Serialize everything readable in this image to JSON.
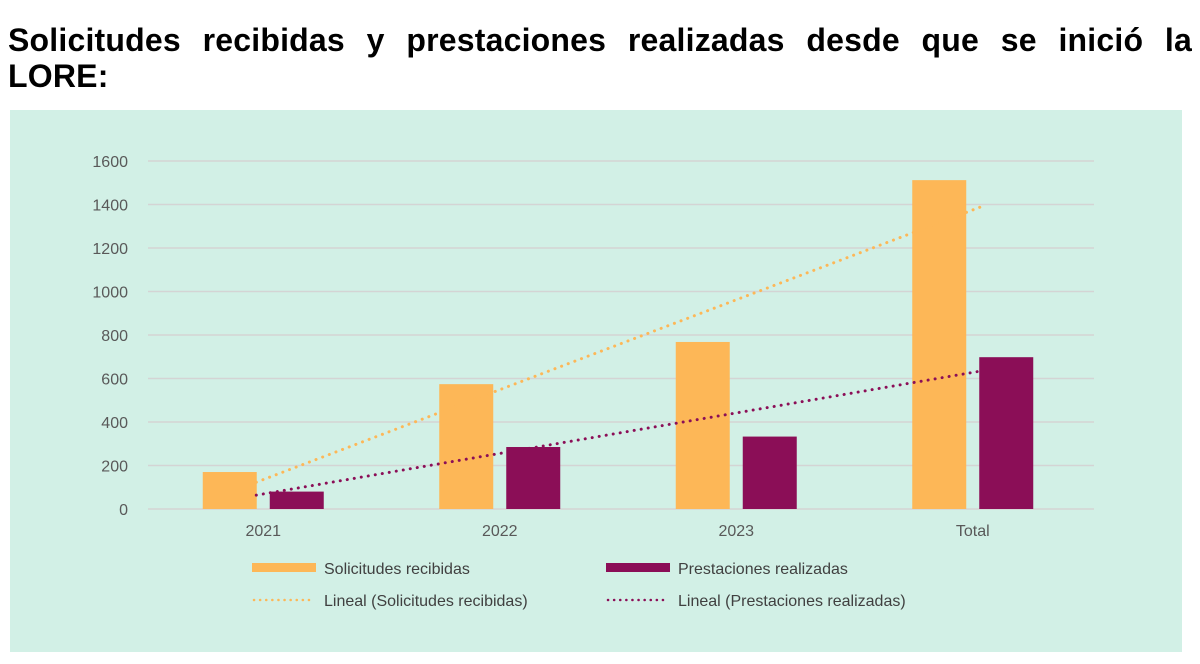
{
  "title": "Solicitudes recibidas y prestaciones realizadas desde que se inició la LORE:",
  "colors": {
    "background": "#d2f0e6",
    "solicitudes": "#fdb757",
    "prestaciones": "#8b0e57",
    "grid": "#d4d4d4",
    "tick_text": "#595959"
  },
  "chart_data": {
    "type": "bar",
    "title": "",
    "xlabel": "",
    "ylabel": "",
    "categories": [
      "2021",
      "2022",
      "2023",
      "Total"
    ],
    "series": [
      {
        "name": "Solicitudes recibidas",
        "values": [
          170,
          574,
          768,
          1512
        ]
      },
      {
        "name": "Prestaciones realizadas",
        "values": [
          80,
          285,
          333,
          698
        ]
      }
    ],
    "trendlines": [
      {
        "name": "Lineal (Solicitudes recibidas)",
        "type": "linear",
        "of_series": "Solicitudes recibidas",
        "style": "dotted"
      },
      {
        "name": "Lineal (Prestaciones realizadas)",
        "type": "linear",
        "of_series": "Prestaciones realizadas",
        "style": "dotted"
      }
    ],
    "ylim": [
      0,
      1600
    ],
    "yticks": [
      0,
      200,
      400,
      600,
      800,
      1000,
      1200,
      1400,
      1600
    ],
    "grid": true,
    "legend_position": "bottom"
  }
}
